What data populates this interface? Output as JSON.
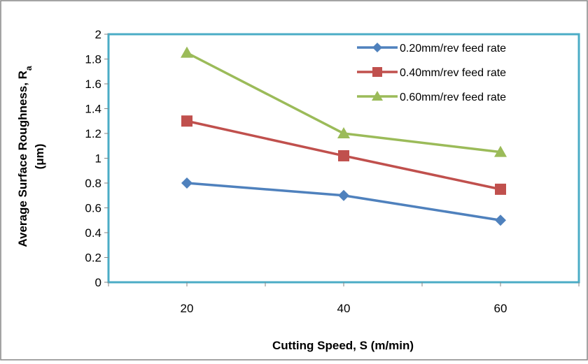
{
  "chart_data": {
    "type": "line",
    "title": "",
    "xlabel": "Cutting Speed,  S (m/min)",
    "ylabel": {
      "main": "Average Surface Roughness, R",
      "subscript": "a",
      "unit": "(μm)"
    },
    "xlim": [
      10,
      70
    ],
    "ylim": [
      0,
      2
    ],
    "x_ticks": [
      20,
      40,
      60
    ],
    "y_ticks": [
      0,
      0.2,
      0.4,
      0.6,
      0.8,
      1,
      1.2,
      1.4,
      1.6,
      1.8,
      2
    ],
    "x_tick_labels": [
      "20",
      "40",
      "60"
    ],
    "y_tick_labels": [
      "0",
      "0.2",
      "0.4",
      "0.6",
      "0.8",
      "1",
      "1.2",
      "1.4",
      "1.6",
      "1.8",
      "2"
    ],
    "grid": false,
    "legend_position": "top-right",
    "series": [
      {
        "name": "0.20mm/rev feed rate",
        "color": "#4f81bd",
        "marker": "diamond",
        "x": [
          20,
          40,
          60
        ],
        "y": [
          0.8,
          0.7,
          0.5
        ]
      },
      {
        "name": "0.40mm/rev feed rate",
        "color": "#c0504d",
        "marker": "square",
        "x": [
          20,
          40,
          60
        ],
        "y": [
          1.3,
          1.02,
          0.75
        ]
      },
      {
        "name": "0.60mm/rev feed rate",
        "color": "#9bbb59",
        "marker": "triangle",
        "x": [
          20,
          40,
          60
        ],
        "y": [
          1.85,
          1.2,
          1.05
        ]
      }
    ],
    "colors": {
      "plot_frame": "#4bacc6",
      "outer_frame": "#868686"
    }
  }
}
